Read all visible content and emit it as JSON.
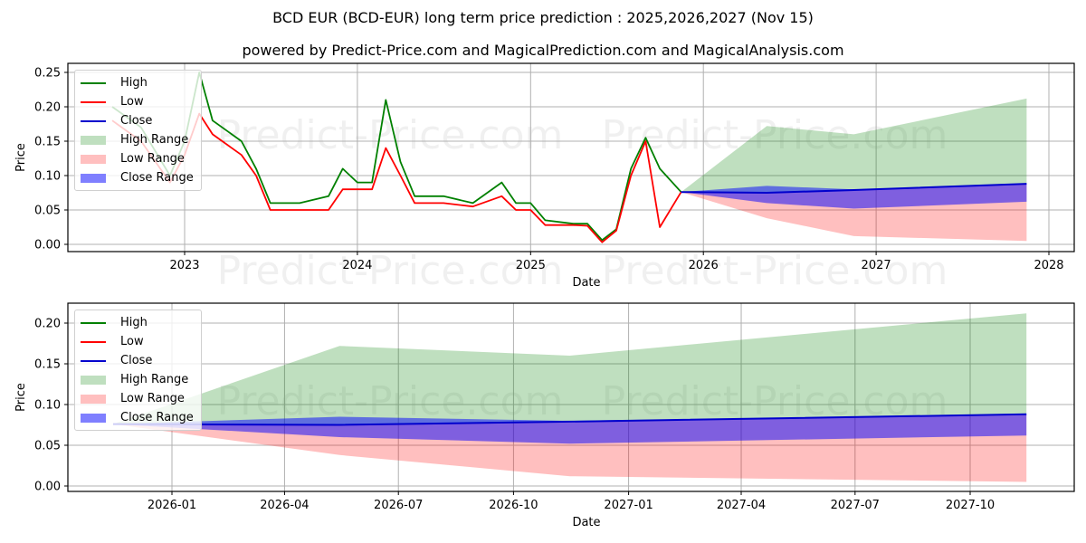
{
  "header": {
    "title": "BCD EUR (BCD-EUR) long term price prediction : 2025,2026,2027 (Nov 15)",
    "subtitle": "powered by Predict-Price.com and MagicalPrediction.com and MagicalAnalysis.com"
  },
  "watermark": "Predict-Price.com",
  "legend": {
    "items": [
      {
        "label": "High",
        "kind": "line",
        "color": "#008000"
      },
      {
        "label": "Low",
        "kind": "line",
        "color": "#ff0000"
      },
      {
        "label": "Close",
        "kind": "line",
        "color": "#0000cd"
      },
      {
        "label": "High Range",
        "kind": "patch",
        "color": "#bfdfbf"
      },
      {
        "label": "Low Range",
        "kind": "patch",
        "color": "#ffbfbf"
      },
      {
        "label": "Close Range",
        "kind": "patch",
        "color": "#7f7fff"
      }
    ]
  },
  "chart_data": [
    {
      "type": "line",
      "title": "BCD EUR (BCD-EUR) long term price prediction : 2025,2026,2027 (Nov 15)",
      "xlabel": "Date",
      "ylabel": "Price",
      "ylim": [
        -0.01,
        0.255
      ],
      "yticks": [
        "0.00",
        "0.05",
        "0.10",
        "0.15",
        "0.20",
        "0.25"
      ],
      "xticks": [
        "2023",
        "2024",
        "2025",
        "2026",
        "2027",
        "2028"
      ],
      "grid": true,
      "legend_position": "upper left",
      "history": {
        "x": [
          "2022-08",
          "2022-10",
          "2022-12",
          "2023-01",
          "2023-02",
          "2023-03",
          "2023-05",
          "2023-06",
          "2023-07",
          "2023-09",
          "2023-11",
          "2023-12",
          "2024-01",
          "2024-02",
          "2024-03",
          "2024-04",
          "2024-05",
          "2024-07",
          "2024-09",
          "2024-11",
          "2024-12",
          "2025-01",
          "2025-02",
          "2025-04",
          "2025-05",
          "2025-06",
          "2025-07",
          "2025-08",
          "2025-09",
          "2025-10",
          "2025-11-15"
        ],
        "high": [
          0.2,
          0.17,
          0.1,
          0.15,
          0.25,
          0.18,
          0.15,
          0.11,
          0.06,
          0.06,
          0.07,
          0.11,
          0.09,
          0.09,
          0.21,
          0.12,
          0.07,
          0.07,
          0.06,
          0.09,
          0.06,
          0.06,
          0.035,
          0.03,
          0.03,
          0.006,
          0.022,
          0.11,
          0.155,
          0.11,
          0.076
        ],
        "low": [
          0.18,
          0.15,
          0.09,
          0.13,
          0.19,
          0.16,
          0.13,
          0.1,
          0.05,
          0.05,
          0.05,
          0.08,
          0.08,
          0.08,
          0.14,
          0.1,
          0.06,
          0.06,
          0.055,
          0.07,
          0.05,
          0.05,
          0.028,
          0.028,
          0.027,
          0.003,
          0.02,
          0.1,
          0.15,
          0.025,
          0.076
        ]
      },
      "forecast": {
        "x": [
          "2025-11-15",
          "2026-05-15",
          "2026-11-15",
          "2027-11-15"
        ],
        "high": [
          0.076,
          0.172,
          0.16,
          0.212
        ],
        "close": [
          0.076,
          0.075,
          0.079,
          0.088
        ],
        "close_upper": [
          0.076,
          0.085,
          0.08,
          0.088
        ],
        "close_lower": [
          0.076,
          0.06,
          0.052,
          0.062
        ],
        "low": [
          0.076,
          0.038,
          0.012,
          0.005
        ]
      }
    },
    {
      "type": "area",
      "title": "",
      "xlabel": "Date",
      "ylabel": "Price",
      "ylim": [
        -0.005,
        0.222
      ],
      "yticks": [
        "0.00",
        "0.05",
        "0.10",
        "0.15",
        "0.20"
      ],
      "xticks": [
        "2026-01",
        "2026-04",
        "2026-07",
        "2026-10",
        "2027-01",
        "2027-04",
        "2027-07",
        "2027-10"
      ],
      "grid": true,
      "legend_position": "upper left",
      "x": [
        "2025-11-15",
        "2026-05-15",
        "2026-11-15",
        "2027-11-15"
      ],
      "series": [
        {
          "name": "High Range (upper)",
          "values": [
            0.076,
            0.172,
            0.16,
            0.212
          ]
        },
        {
          "name": "Close Range (upper)",
          "values": [
            0.076,
            0.085,
            0.08,
            0.088
          ]
        },
        {
          "name": "Close",
          "values": [
            0.076,
            0.075,
            0.079,
            0.088
          ]
        },
        {
          "name": "Close Range (lower)",
          "values": [
            0.076,
            0.06,
            0.052,
            0.062
          ]
        },
        {
          "name": "Low Range (lower)",
          "values": [
            0.076,
            0.038,
            0.012,
            0.005
          ]
        }
      ]
    }
  ]
}
